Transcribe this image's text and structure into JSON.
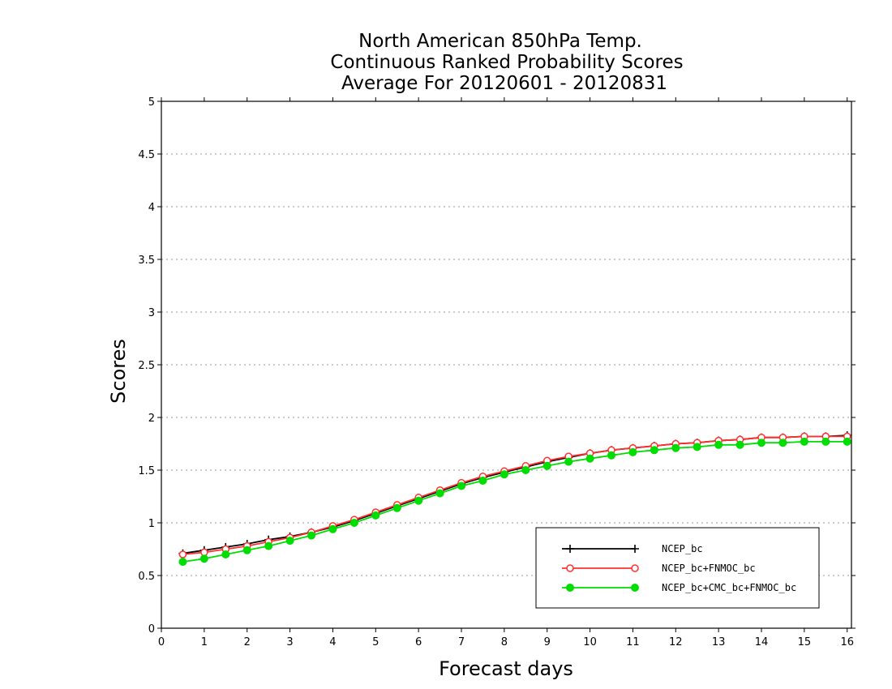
{
  "chart_data": {
    "type": "line",
    "title_lines": [
      "North American 850hPa Temp.",
      "Continuous Ranked Probability Scores",
      "Average For 20120601 - 20120831"
    ],
    "xlabel": "Forecast days",
    "ylabel": "Scores",
    "xlim": [
      0,
      16.1
    ],
    "ylim": [
      0,
      5
    ],
    "xticks": [
      0,
      1,
      2,
      3,
      4,
      5,
      6,
      7,
      8,
      9,
      10,
      11,
      12,
      13,
      14,
      15,
      16
    ],
    "yticks": [
      0,
      0.5,
      1,
      1.5,
      2,
      2.5,
      3,
      3.5,
      4,
      4.5,
      5
    ],
    "ytick_labels": [
      "0",
      "0.5",
      "1",
      "1.5",
      "2",
      "2.5",
      "3",
      "3.5",
      "4",
      "4.5",
      "5"
    ],
    "grid": "horizontal dotted",
    "legend_position": "bottom-right",
    "x": [
      0.5,
      1,
      1.5,
      2,
      2.5,
      3,
      3.5,
      4,
      4.5,
      5,
      5.5,
      6,
      6.5,
      7,
      7.5,
      8,
      8.5,
      9,
      9.5,
      10,
      10.5,
      11,
      11.5,
      12,
      12.5,
      13,
      13.5,
      14,
      14.5,
      15,
      15.5,
      16
    ],
    "series": [
      {
        "name": "NCEP_bc",
        "color": "#000000",
        "marker": "plus",
        "values": [
          0.71,
          0.74,
          0.77,
          0.8,
          0.84,
          0.87,
          0.91,
          0.96,
          1.02,
          1.09,
          1.16,
          1.23,
          1.3,
          1.37,
          1.43,
          1.48,
          1.53,
          1.58,
          1.62,
          1.66,
          1.69,
          1.71,
          1.73,
          1.75,
          1.76,
          1.78,
          1.79,
          1.81,
          1.81,
          1.82,
          1.82,
          1.83
        ]
      },
      {
        "name": "NCEP_bc+FNMOC_bc",
        "color": "#ff3030",
        "marker": "open-circle",
        "values": [
          0.7,
          0.72,
          0.75,
          0.78,
          0.82,
          0.86,
          0.91,
          0.97,
          1.03,
          1.1,
          1.17,
          1.24,
          1.31,
          1.38,
          1.44,
          1.49,
          1.54,
          1.59,
          1.63,
          1.66,
          1.69,
          1.71,
          1.73,
          1.75,
          1.76,
          1.78,
          1.79,
          1.81,
          1.81,
          1.82,
          1.82,
          1.82
        ]
      },
      {
        "name": "NCEP_bc+CMC_bc+FNMOC_bc",
        "color": "#00dd00",
        "marker": "filled-circle",
        "values": [
          0.63,
          0.66,
          0.7,
          0.74,
          0.78,
          0.83,
          0.88,
          0.94,
          1.0,
          1.07,
          1.14,
          1.21,
          1.28,
          1.35,
          1.4,
          1.46,
          1.5,
          1.54,
          1.58,
          1.61,
          1.64,
          1.67,
          1.69,
          1.71,
          1.72,
          1.74,
          1.74,
          1.76,
          1.76,
          1.77,
          1.77,
          1.77
        ]
      }
    ]
  }
}
